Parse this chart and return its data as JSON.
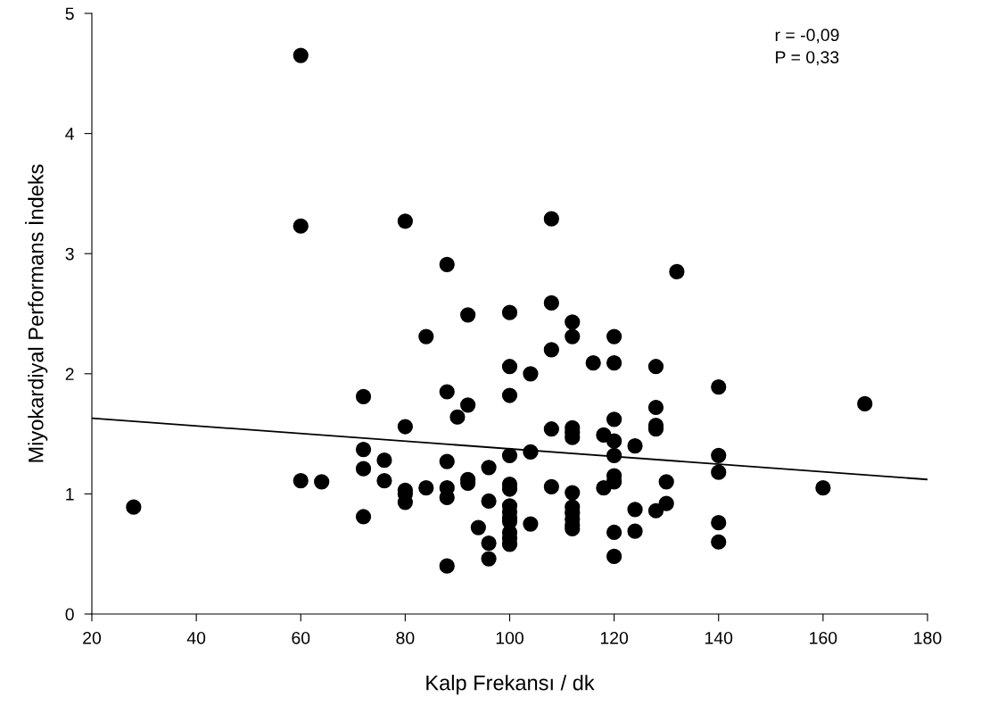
{
  "chart_data": {
    "type": "scatter",
    "xlabel": "Kalp Frekansı / dk",
    "ylabel": "Miyokardiyal Performans İndeks",
    "xlim": [
      20,
      180
    ],
    "xticks": [
      20,
      40,
      60,
      80,
      100,
      120,
      140,
      160,
      180
    ],
    "ylim": [
      0,
      5
    ],
    "yticks": [
      0,
      1,
      2,
      3,
      4,
      5
    ],
    "grid": false,
    "legend": false,
    "marker": "circle",
    "annotations": [
      "r = -0,09",
      "P = 0,33"
    ],
    "series": [
      {
        "color": "#000000",
        "x": [
          28,
          60,
          60,
          60,
          64,
          72,
          72,
          72,
          72,
          76,
          76,
          80,
          80,
          80,
          80,
          80,
          84,
          84,
          88,
          88,
          88,
          88,
          88,
          88,
          90,
          92,
          92,
          92,
          92,
          94,
          96,
          96,
          96,
          96,
          100,
          100,
          100,
          100,
          100,
          100,
          100,
          100,
          100,
          100,
          100,
          100,
          100,
          104,
          104,
          104,
          108,
          108,
          108,
          108,
          108,
          112,
          112,
          112,
          112,
          112,
          112,
          112,
          112,
          112,
          112,
          112,
          116,
          118,
          118,
          120,
          120,
          120,
          120,
          120,
          120,
          120,
          120,
          120,
          124,
          124,
          124,
          128,
          128,
          128,
          128,
          128,
          130,
          130,
          132,
          140,
          140,
          140,
          140,
          140,
          160,
          168
        ],
        "values": [
          0.89,
          4.65,
          3.23,
          1.11,
          1.1,
          1.81,
          1.37,
          1.21,
          0.81,
          1.28,
          1.11,
          3.27,
          1.56,
          1.03,
          1.0,
          0.93,
          2.31,
          1.05,
          2.91,
          1.85,
          1.27,
          1.05,
          0.97,
          0.4,
          1.64,
          2.49,
          1.74,
          1.12,
          1.09,
          0.72,
          1.22,
          0.94,
          0.59,
          0.46,
          2.51,
          2.06,
          1.82,
          1.32,
          1.08,
          1.04,
          0.9,
          0.85,
          0.8,
          0.77,
          0.68,
          0.63,
          0.58,
          2.0,
          1.35,
          0.75,
          3.29,
          2.59,
          2.2,
          1.54,
          1.06,
          2.43,
          2.31,
          1.55,
          1.51,
          1.47,
          1.01,
          0.89,
          0.84,
          0.79,
          0.74,
          0.71,
          2.09,
          1.49,
          1.05,
          2.31,
          2.09,
          1.62,
          1.44,
          1.32,
          1.15,
          1.1,
          0.68,
          0.48,
          1.4,
          0.87,
          0.69,
          2.06,
          1.72,
          1.57,
          1.54,
          0.86,
          1.1,
          0.92,
          2.85,
          1.89,
          1.32,
          1.18,
          0.76,
          0.6,
          1.05,
          1.75
        ]
      },
      {
        "type": "line",
        "color": "#000000",
        "x": [
          20,
          180
        ],
        "values": [
          1.63,
          1.12
        ],
        "marker": "none",
        "line_style": "solid"
      }
    ]
  }
}
